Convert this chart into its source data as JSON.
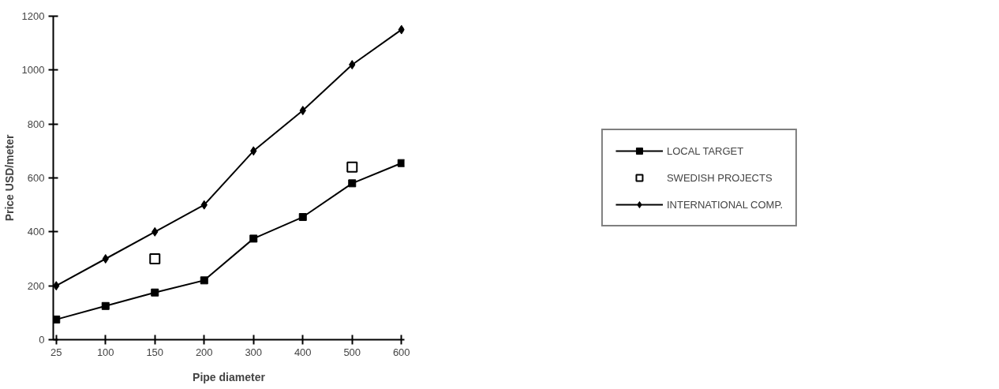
{
  "chart_data": {
    "type": "line",
    "xlabel": "Pipe diameter",
    "ylabel": "Price USD/meter",
    "categories": [
      "25",
      "100",
      "150",
      "200",
      "300",
      "400",
      "500",
      "600"
    ],
    "series": [
      {
        "name": "LOCAL TARGET",
        "color": "#000000",
        "marker": "square",
        "values": [
          75,
          125,
          175,
          220,
          375,
          455,
          580,
          655
        ]
      },
      {
        "name": "SWEDISH PROJECTS",
        "type": "scatter",
        "color": "#000000",
        "marker": "square",
        "values": [
          null,
          null,
          300,
          null,
          null,
          null,
          640,
          null
        ]
      },
      {
        "name": "INTERNATIONAL COMP.",
        "color": "#000000",
        "marker": "diamond",
        "values": [
          200,
          300,
          400,
          500,
          700,
          850,
          1020,
          1150
        ]
      }
    ],
    "ylim": [
      0,
      1200
    ],
    "yticks": [
      0,
      200,
      400,
      600,
      800,
      1000,
      1200
    ],
    "grid": false,
    "legend": "right",
    "line_style": "solid"
  }
}
